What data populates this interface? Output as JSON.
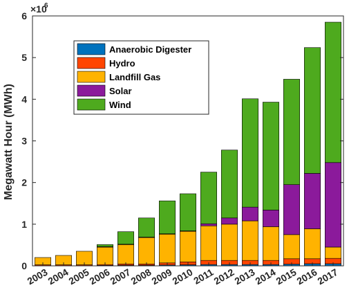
{
  "chart_data": {
    "type": "bar",
    "stacked": true,
    "categories": [
      "2003",
      "2004",
      "2005",
      "2006",
      "2007",
      "2008",
      "2009",
      "2010",
      "2011",
      "2012",
      "2013",
      "2014",
      "2015",
      "2016",
      "2017"
    ],
    "series": [
      {
        "name": "Anaerobic Digester",
        "color": "#0072BD",
        "values": [
          0.005,
          0.005,
          0.005,
          0.01,
          0.015,
          0.015,
          0.02,
          0.025,
          0.03,
          0.03,
          0.03,
          0.03,
          0.04,
          0.05,
          0.05
        ]
      },
      {
        "name": "Hydro",
        "color": "#FF4500",
        "values": [
          0.02,
          0.02,
          0.02,
          0.02,
          0.03,
          0.03,
          0.05,
          0.07,
          0.1,
          0.1,
          0.1,
          0.1,
          0.13,
          0.12,
          0.13
        ]
      },
      {
        "name": "Landfill Gas",
        "color": "#FFB300",
        "values": [
          0.175,
          0.225,
          0.325,
          0.42,
          0.465,
          0.635,
          0.69,
          0.735,
          0.83,
          0.87,
          0.95,
          0.81,
          0.58,
          0.72,
          0.27
        ]
      },
      {
        "name": "Solar",
        "color": "#8B1A9B",
        "values": [
          0,
          0,
          0,
          0.01,
          0.01,
          0.01,
          0.01,
          0.01,
          0.05,
          0.15,
          0.33,
          0.4,
          1.2,
          1.33,
          2.03
        ]
      },
      {
        "name": "Wind",
        "color": "#4EAA1E",
        "values": [
          0,
          0,
          0,
          0.05,
          0.3,
          0.46,
          0.79,
          0.89,
          1.24,
          1.63,
          2.6,
          2.59,
          2.53,
          3.02,
          3.37
        ]
      }
    ],
    "ylabel": "Megawatt Hour (MWh)",
    "xlabel": "",
    "ylim": [
      0,
      6
    ],
    "yticks": [
      "0",
      "1",
      "2",
      "3",
      "4",
      "5",
      "6"
    ],
    "y_multiplier_base": "×10",
    "y_multiplier_exp": "6",
    "legend_position": "upper-left",
    "grid": false
  }
}
